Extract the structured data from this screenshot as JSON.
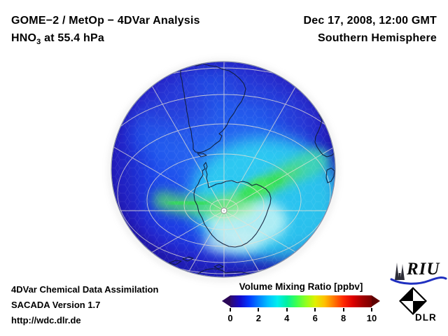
{
  "header": {
    "title_line1": "GOME−2 / MetOp − 4DVar Analysis",
    "species": "HNO",
    "species_sub": "3",
    "level_suffix": " at 55.4 hPa",
    "datetime": "Dec 17, 2008, 12:00 GMT",
    "hemisphere": "Southern Hemisphere"
  },
  "footer": {
    "line1": "4DVar Chemical Data Assimilation",
    "line2": "SACADA Version 1.7",
    "line3": "http://wdc.dlr.de"
  },
  "colorbar": {
    "title": "Volume Mixing Ratio [ppbv]",
    "tick_labels": [
      "0",
      "2",
      "4",
      "6",
      "8",
      "10"
    ],
    "gradient_stops": [
      "#2f0a6e",
      "#1507c8",
      "#0038ff",
      "#0080ff",
      "#00c0ff",
      "#00eeee",
      "#00f0a0",
      "#3dff50",
      "#90ff20",
      "#e0f000",
      "#ffc000",
      "#ff7600",
      "#ff2800",
      "#dd0000",
      "#a30000",
      "#7a0000"
    ],
    "left_arrow_color": "#2a0758",
    "right_arrow_color": "#5e0000"
  },
  "logos": {
    "riu_text": "RIU",
    "dlr_text": "DLR"
  },
  "map_palette": {
    "ocean_mid_blue": "#1d49ec",
    "rim_dark_indigo": "#2b1fc6",
    "cyan_region": "#2fd4f2",
    "pale_core": "#c6f4f4",
    "green_maximum": "#2fe14e",
    "coastline": "#101c38",
    "graticule": "#e8e2d4"
  },
  "chart_data": {
    "type": "heatmap",
    "title": "HNO3 volume mixing ratio at 55.4 hPa, 4DVar analysis, Southern Hemisphere, Dec 17, 2008, 12:00 GMT",
    "colorbar_label": "Volume Mixing Ratio [ppbv]",
    "scale_ticks": [
      0,
      2,
      4,
      6,
      8,
      10
    ],
    "scale_range": [
      0,
      10
    ],
    "projection": "orthographic view of Southern Hemisphere, South Pole below disk center",
    "estimated_field_values": [
      {
        "region": "midlatitude rim 30-45S (dark indigo blue)",
        "value_ppbv": 0.8
      },
      {
        "region": "45-60S ocean ring (medium blue)",
        "value_ppbv": 1.5
      },
      {
        "region": "55-75S broad sector east of pole (cyan)",
        "value_ppbv": 3.0
      },
      {
        "region": "band near 60-70S west and northeast of Antarctic Peninsula (green maxima)",
        "value_ppbv": 4.3
      },
      {
        "region": "near South Pole / over Antarctica (pale cyan)",
        "value_ppbv": 3.2
      }
    ]
  }
}
